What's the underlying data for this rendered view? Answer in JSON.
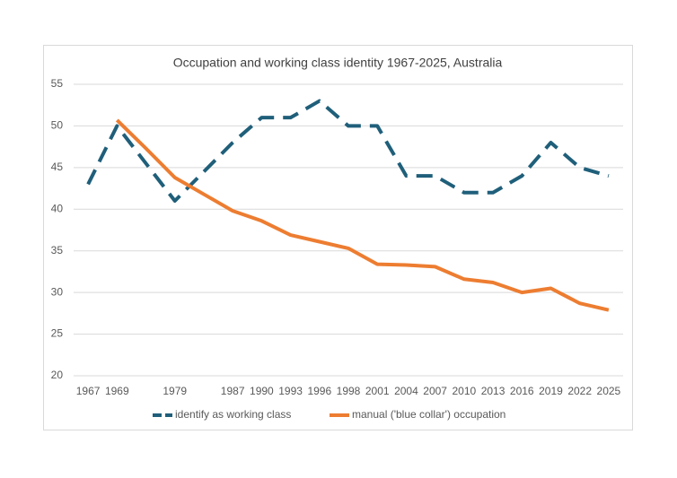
{
  "chart_data": {
    "type": "line",
    "title": "Occupation and working class identity 1967-2025, Australia",
    "categories": [
      "1967",
      "1969",
      null,
      "1979",
      null,
      "1987",
      "1990",
      "1993",
      "1996",
      "1998",
      "2001",
      "2004",
      "2007",
      "2010",
      "2013",
      "2016",
      "2019",
      "2022",
      "2025"
    ],
    "series": [
      {
        "name": "identify as working class",
        "color": "#1f5f7a",
        "dashed": true,
        "values": [
          43,
          50,
          45.5,
          41,
          44.5,
          48,
          51,
          51,
          53,
          50,
          50,
          44,
          44,
          42,
          42,
          44,
          48,
          45,
          44
        ]
      },
      {
        "name": "manual ('blue collar') occupation",
        "color": "#ed7d31",
        "dashed": false,
        "values": [
          null,
          50.7,
          47.3,
          43.8,
          41.8,
          39.8,
          38.6,
          36.9,
          36.1,
          35.3,
          33.4,
          33.3,
          33.1,
          31.6,
          31.2,
          30.0,
          30.5,
          28.7,
          27.9
        ]
      }
    ],
    "ylim": [
      20,
      55
    ],
    "yticks": [
      20,
      25,
      30,
      35,
      40,
      45,
      50,
      55
    ],
    "grid": true,
    "legend": "bottom"
  }
}
